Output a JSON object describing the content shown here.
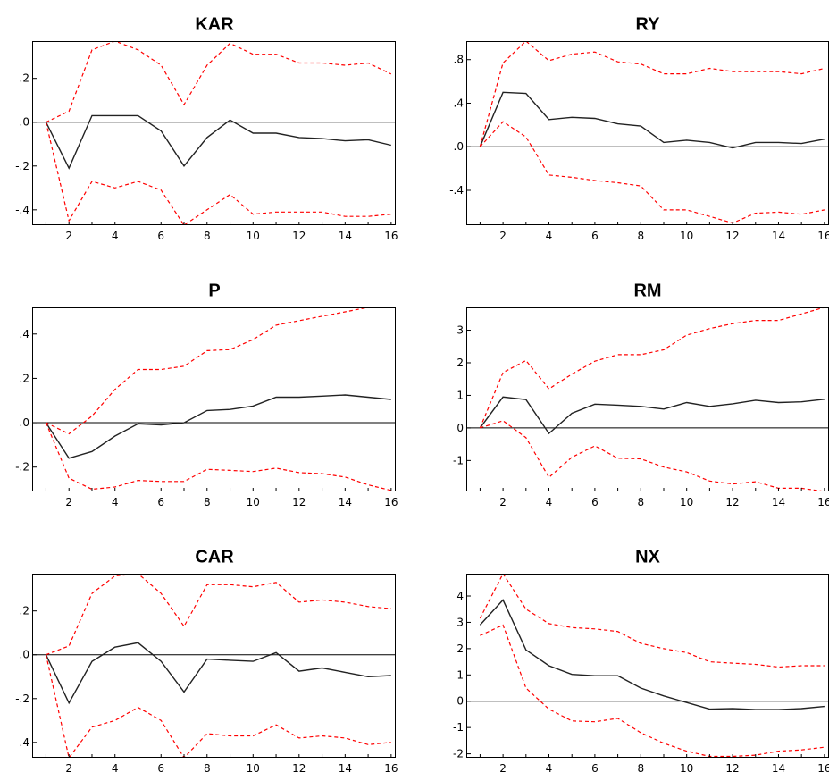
{
  "colors": {
    "response": "#222222",
    "band": "#ff0000",
    "zero_line": "#000000",
    "frame": "#000000"
  },
  "chart_data": [
    {
      "type": "line",
      "title": "KAR",
      "x": [
        1,
        2,
        3,
        4,
        5,
        6,
        7,
        8,
        9,
        10,
        11,
        12,
        13,
        14,
        15,
        16
      ],
      "ylim": [
        -0.47,
        0.37
      ],
      "yticks": [
        0.2,
        0.0,
        -0.2,
        -0.4
      ],
      "ytick_labels": [
        ".2",
        ".0",
        "-.2",
        "-.4"
      ],
      "xlim": [
        0.4,
        16.2
      ],
      "xticks": [
        2,
        4,
        6,
        8,
        10,
        12,
        14,
        16
      ],
      "xtick_labels": [
        "2",
        "4",
        "6",
        "8",
        "10",
        "12",
        "14",
        "16"
      ],
      "series": [
        {
          "role": "response",
          "values": [
            0.0,
            -0.21,
            0.03,
            0.03,
            0.03,
            -0.04,
            -0.2,
            -0.07,
            0.01,
            -0.05,
            -0.05,
            -0.07,
            -0.075,
            -0.085,
            -0.08,
            -0.105
          ]
        },
        {
          "role": "upper",
          "values": [
            0.0,
            0.05,
            0.33,
            0.37,
            0.33,
            0.26,
            0.08,
            0.26,
            0.36,
            0.31,
            0.31,
            0.27,
            0.27,
            0.26,
            0.27,
            0.22
          ]
        },
        {
          "role": "lower",
          "values": [
            0.0,
            -0.45,
            -0.27,
            -0.3,
            -0.27,
            -0.31,
            -0.47,
            -0.4,
            -0.33,
            -0.42,
            -0.41,
            -0.41,
            -0.41,
            -0.43,
            -0.43,
            -0.42
          ]
        }
      ]
    },
    {
      "type": "line",
      "title": "RY",
      "x": [
        1,
        2,
        3,
        4,
        5,
        6,
        7,
        8,
        9,
        10,
        11,
        12,
        13,
        14,
        15,
        16
      ],
      "ylim": [
        -0.72,
        0.97
      ],
      "yticks": [
        0.8,
        0.4,
        0.0,
        -0.4
      ],
      "ytick_labels": [
        ".8",
        ".4",
        ".0",
        "-.4"
      ],
      "xlim": [
        0.4,
        16.2
      ],
      "xticks": [
        2,
        4,
        6,
        8,
        10,
        12,
        14,
        16
      ],
      "xtick_labels": [
        "2",
        "4",
        "6",
        "8",
        "10",
        "12",
        "14",
        "16"
      ],
      "series": [
        {
          "role": "response",
          "values": [
            0.0,
            0.5,
            0.49,
            0.25,
            0.27,
            0.26,
            0.21,
            0.19,
            0.04,
            0.06,
            0.04,
            -0.01,
            0.04,
            0.04,
            0.03,
            0.07
          ]
        },
        {
          "role": "upper",
          "values": [
            0.0,
            0.77,
            0.97,
            0.79,
            0.85,
            0.87,
            0.78,
            0.76,
            0.67,
            0.67,
            0.72,
            0.69,
            0.69,
            0.69,
            0.67,
            0.72
          ]
        },
        {
          "role": "lower",
          "values": [
            0.0,
            0.23,
            0.09,
            -0.26,
            -0.28,
            -0.31,
            -0.33,
            -0.36,
            -0.58,
            -0.58,
            -0.64,
            -0.7,
            -0.61,
            -0.6,
            -0.62,
            -0.58
          ]
        }
      ]
    },
    {
      "type": "line",
      "title": "P",
      "x": [
        1,
        2,
        3,
        4,
        5,
        6,
        7,
        8,
        9,
        10,
        11,
        12,
        13,
        14,
        15,
        16
      ],
      "ylim": [
        -0.31,
        0.52
      ],
      "yticks": [
        0.4,
        0.2,
        0.0,
        -0.2
      ],
      "ytick_labels": [
        ".4",
        ".2",
        ".0",
        "-.2"
      ],
      "xlim": [
        0.4,
        16.2
      ],
      "xticks": [
        2,
        4,
        6,
        8,
        10,
        12,
        14,
        16
      ],
      "xtick_labels": [
        "2",
        "4",
        "6",
        "8",
        "10",
        "12",
        "14",
        "16"
      ],
      "series": [
        {
          "role": "response",
          "values": [
            0.0,
            -0.16,
            -0.13,
            -0.06,
            -0.005,
            -0.01,
            0.0,
            0.055,
            0.06,
            0.075,
            0.115,
            0.115,
            0.12,
            0.125,
            0.115,
            0.105
          ]
        },
        {
          "role": "upper",
          "values": [
            0.0,
            -0.05,
            0.03,
            0.15,
            0.24,
            0.24,
            0.255,
            0.325,
            0.33,
            0.375,
            0.44,
            0.46,
            0.48,
            0.5,
            0.52,
            0.53
          ]
        },
        {
          "role": "lower",
          "values": [
            0.0,
            -0.25,
            -0.3,
            -0.29,
            -0.26,
            -0.265,
            -0.265,
            -0.21,
            -0.215,
            -0.22,
            -0.205,
            -0.225,
            -0.23,
            -0.245,
            -0.28,
            -0.305
          ]
        }
      ]
    },
    {
      "type": "line",
      "title": "RM",
      "x": [
        1,
        2,
        3,
        4,
        5,
        6,
        7,
        8,
        9,
        10,
        11,
        12,
        13,
        14,
        15,
        16
      ],
      "ylim": [
        -1.95,
        3.7
      ],
      "yticks": [
        3,
        2,
        1,
        0,
        -1
      ],
      "ytick_labels": [
        "3",
        "2",
        "1",
        "0",
        "-1"
      ],
      "xlim": [
        0.4,
        16.2
      ],
      "xticks": [
        2,
        4,
        6,
        8,
        10,
        12,
        14,
        16
      ],
      "xtick_labels": [
        "2",
        "4",
        "6",
        "8",
        "10",
        "12",
        "14",
        "16"
      ],
      "series": [
        {
          "role": "response",
          "values": [
            0.0,
            0.95,
            0.87,
            -0.17,
            0.45,
            0.73,
            0.7,
            0.66,
            0.58,
            0.78,
            0.66,
            0.74,
            0.85,
            0.78,
            0.8,
            0.88
          ]
        },
        {
          "role": "upper",
          "values": [
            0.0,
            1.7,
            2.07,
            1.2,
            1.65,
            2.05,
            2.25,
            2.25,
            2.4,
            2.85,
            3.05,
            3.2,
            3.3,
            3.3,
            3.5,
            3.7
          ]
        },
        {
          "role": "lower",
          "values": [
            0.0,
            0.22,
            -0.3,
            -1.52,
            -0.9,
            -0.55,
            -0.93,
            -0.95,
            -1.2,
            -1.35,
            -1.63,
            -1.72,
            -1.65,
            -1.85,
            -1.85,
            -1.95
          ]
        }
      ]
    },
    {
      "type": "line",
      "title": "CAR",
      "x": [
        1,
        2,
        3,
        4,
        5,
        6,
        7,
        8,
        9,
        10,
        11,
        12,
        13,
        14,
        15,
        16
      ],
      "ylim": [
        -0.47,
        0.37
      ],
      "yticks": [
        0.2,
        0.0,
        -0.2,
        -0.4
      ],
      "ytick_labels": [
        ".2",
        ".0",
        "-.2",
        "-.4"
      ],
      "xlim": [
        0.4,
        16.2
      ],
      "xticks": [
        2,
        4,
        6,
        8,
        10,
        12,
        14,
        16
      ],
      "xtick_labels": [
        "2",
        "4",
        "6",
        "8",
        "10",
        "12",
        "14",
        "16"
      ],
      "series": [
        {
          "role": "response",
          "values": [
            0.0,
            -0.22,
            -0.03,
            0.035,
            0.055,
            -0.03,
            -0.17,
            -0.02,
            -0.025,
            -0.03,
            0.01,
            -0.075,
            -0.06,
            -0.08,
            -0.1,
            -0.095
          ]
        },
        {
          "role": "upper",
          "values": [
            0.0,
            0.04,
            0.28,
            0.36,
            0.37,
            0.28,
            0.13,
            0.32,
            0.32,
            0.31,
            0.33,
            0.24,
            0.25,
            0.24,
            0.22,
            0.21
          ]
        },
        {
          "role": "lower",
          "values": [
            0.0,
            -0.47,
            -0.33,
            -0.3,
            -0.24,
            -0.3,
            -0.47,
            -0.36,
            -0.37,
            -0.37,
            -0.32,
            -0.38,
            -0.37,
            -0.38,
            -0.41,
            -0.4
          ]
        }
      ]
    },
    {
      "type": "line",
      "title": "NX",
      "x": [
        1,
        2,
        3,
        4,
        5,
        6,
        7,
        8,
        9,
        10,
        11,
        12,
        13,
        14,
        15,
        16
      ],
      "ylim": [
        -2.15,
        4.85
      ],
      "yticks": [
        4,
        3,
        2,
        1,
        0,
        -1,
        -2
      ],
      "ytick_labels": [
        "4",
        "3",
        "2",
        "1",
        "0",
        "-1",
        "-2"
      ],
      "xlim": [
        0.4,
        16.2
      ],
      "xticks": [
        2,
        4,
        6,
        8,
        10,
        12,
        14,
        16
      ],
      "xtick_labels": [
        "2",
        "4",
        "6",
        "8",
        "10",
        "12",
        "14",
        "16"
      ],
      "series": [
        {
          "role": "response",
          "values": [
            2.9,
            3.85,
            1.95,
            1.35,
            1.02,
            0.97,
            0.97,
            0.5,
            0.2,
            -0.05,
            -0.3,
            -0.28,
            -0.32,
            -0.32,
            -0.28,
            -0.2
          ]
        },
        {
          "role": "upper",
          "values": [
            3.15,
            4.85,
            3.5,
            2.95,
            2.8,
            2.75,
            2.65,
            2.2,
            2.0,
            1.85,
            1.5,
            1.45,
            1.4,
            1.3,
            1.35,
            1.35
          ]
        },
        {
          "role": "lower",
          "values": [
            2.5,
            2.9,
            0.5,
            -0.3,
            -0.75,
            -0.78,
            -0.65,
            -1.2,
            -1.6,
            -1.9,
            -2.1,
            -2.1,
            -2.05,
            -1.9,
            -1.85,
            -1.75
          ]
        }
      ]
    }
  ]
}
